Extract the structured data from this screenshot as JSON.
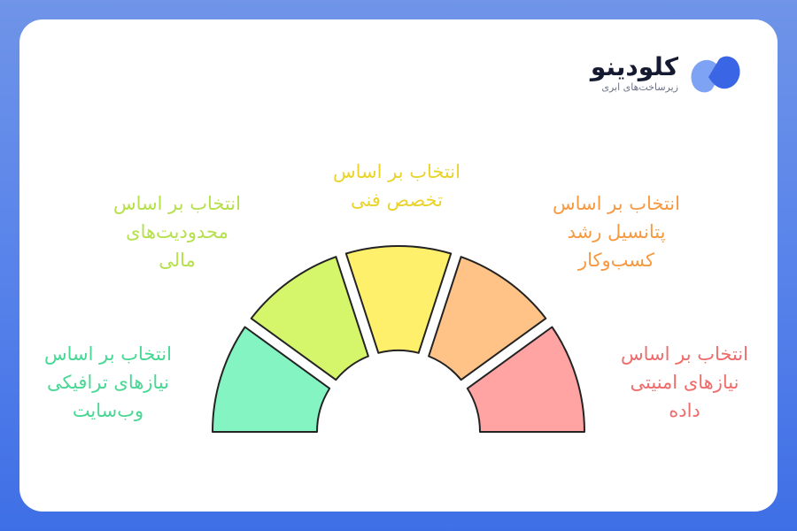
{
  "logo": {
    "name": "کلودینو",
    "tagline": "زیرساخت‌های ابری",
    "colors": {
      "primary": "#3a66e6",
      "secondary": "#7ea3f5"
    }
  },
  "segments": [
    {
      "lines": [
        "انتخاب بر اساس",
        "نیازهای ترافیکی",
        "وب‌سایت"
      ],
      "fill": "#84f5c2",
      "text_color": "#48d894"
    },
    {
      "lines": [
        "انتخاب بر اساس",
        "محدودیت‌های",
        "مالی"
      ],
      "fill": "#d5f66a",
      "text_color": "#b6e04c"
    },
    {
      "lines": [
        "انتخاب بر اساس",
        "تخصص فنی"
      ],
      "fill": "#fff06b",
      "text_color": "#ead42c"
    },
    {
      "lines": [
        "انتخاب بر اساس",
        "پتانسیل رشد",
        "کسب‌وکار"
      ],
      "fill": "#ffc287",
      "text_color": "#f59a43"
    },
    {
      "lines": [
        "انتخاب بر اساس",
        "نیازهای امنیتی",
        "داده"
      ],
      "fill": "#ffa3a3",
      "text_color": "#f06b6b"
    }
  ]
}
